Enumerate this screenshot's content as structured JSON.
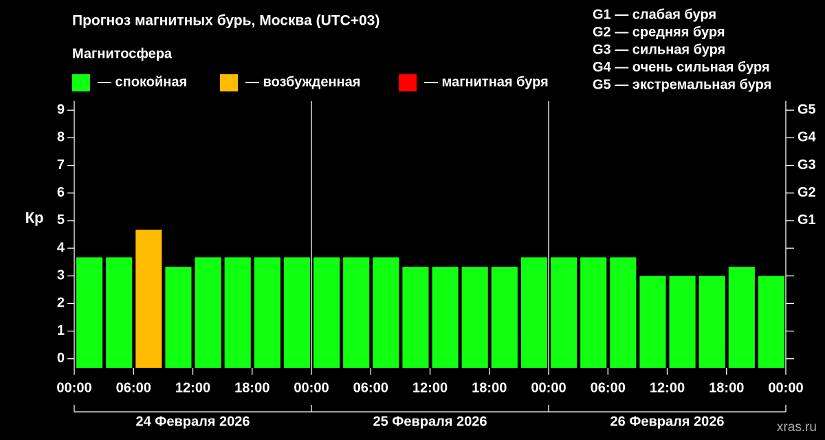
{
  "chart_data": {
    "type": "bar",
    "title": "Прогноз магнитных бурь, Москва (UTC+03)",
    "legend_title": "Магнитосфера",
    "legend": [
      {
        "name": "— спокойная",
        "color": "#11ff11"
      },
      {
        "name": "— возбужденная",
        "color": "#ffbb00"
      },
      {
        "name": "— магнитная буря",
        "color": "#ff0000"
      }
    ],
    "storm_levels": [
      "G1 — слабая буря",
      "G2 — средняя буря",
      "G3 — сильная буря",
      "G4 — очень сильная буря",
      "G5 — экстремальная буря"
    ],
    "y_label": "Кр",
    "x": [
      0,
      3,
      6,
      9,
      12,
      15,
      18,
      21,
      24,
      27,
      30,
      33,
      36,
      39,
      42,
      45,
      48,
      51,
      54,
      57,
      60,
      63,
      66,
      69
    ],
    "values": [
      3.67,
      3.67,
      4.67,
      3.33,
      3.67,
      3.67,
      3.67,
      3.67,
      3.67,
      3.67,
      3.67,
      3.33,
      3.33,
      3.33,
      3.33,
      3.67,
      3.67,
      3.67,
      3.67,
      3.0,
      3.0,
      3.0,
      3.33,
      3.0
    ],
    "colors": [
      "#11ff11",
      "#11ff11",
      "#ffbb00",
      "#11ff11",
      "#11ff11",
      "#11ff11",
      "#11ff11",
      "#11ff11",
      "#11ff11",
      "#11ff11",
      "#11ff11",
      "#11ff11",
      "#11ff11",
      "#11ff11",
      "#11ff11",
      "#11ff11",
      "#11ff11",
      "#11ff11",
      "#11ff11",
      "#11ff11",
      "#11ff11",
      "#11ff11",
      "#11ff11",
      "#11ff11"
    ],
    "xlim": [
      0,
      72
    ],
    "xticks": [
      {
        "value": 0,
        "label": "00:00"
      },
      {
        "value": 6,
        "label": "06:00"
      },
      {
        "value": 12,
        "label": "12:00"
      },
      {
        "value": 18,
        "label": "18:00"
      },
      {
        "value": 24,
        "label": "00:00"
      },
      {
        "value": 30,
        "label": "06:00"
      },
      {
        "value": 36,
        "label": "12:00"
      },
      {
        "value": 42,
        "label": "18:00"
      },
      {
        "value": 48,
        "label": "00:00"
      },
      {
        "value": 54,
        "label": "06:00"
      },
      {
        "value": 60,
        "label": "12:00"
      },
      {
        "value": 66,
        "label": "18:00"
      },
      {
        "value": 72,
        "label": "00:00"
      }
    ],
    "days": [
      {
        "value": 0,
        "label": "24 Февраля 2026"
      },
      {
        "value": 24,
        "label": "25 Февраля 2026"
      },
      {
        "value": 48,
        "label": "26 Февраля 2026"
      }
    ],
    "ylim": [
      -0.33,
      9.33
    ],
    "yticks": [
      0,
      1,
      2,
      3,
      4,
      5,
      6,
      7,
      8,
      9
    ],
    "y2lim": [
      -0.33,
      9.33
    ],
    "y2ticks": [
      {
        "value": 5,
        "label": "G1"
      },
      {
        "value": 6,
        "label": "G2"
      },
      {
        "value": 7,
        "label": "G3"
      },
      {
        "value": 8,
        "label": "G4"
      },
      {
        "value": 9,
        "label": "G5"
      }
    ],
    "watermark": "xras.ru"
  }
}
